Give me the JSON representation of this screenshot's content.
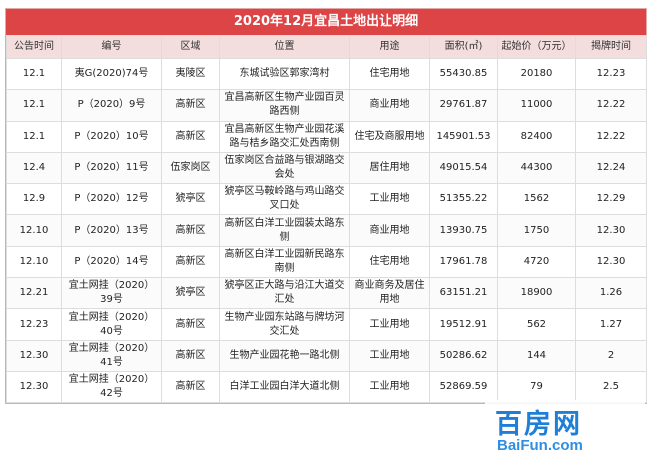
{
  "title": "2020年12月宜昌土地出让明细",
  "headers": [
    "公告时间",
    "编号",
    "区域",
    "位置",
    "用途",
    "面积(㎡)",
    "起始价（万元）",
    "揭牌时间"
  ],
  "rows": [
    [
      "12.1",
      "夷G(2020)74号",
      "夷陵区",
      "东城试验区郭家湾村",
      "住宅用地",
      "55430.85",
      "20180",
      "12.23"
    ],
    [
      "12.1",
      "P（2020）9号",
      "高新区",
      "宜昌高新区生物产业园百灵路西侧",
      "商业用地",
      "29761.87",
      "11000",
      "12.22"
    ],
    [
      "12.1",
      "P（2020）10号",
      "高新区",
      "宜昌高新区生物产业园花溪路与桔乡路交汇处西南侧",
      "住宅及商服用地",
      "145901.53",
      "82400",
      "12.22"
    ],
    [
      "12.4",
      "P（2020）11号",
      "伍家岗区",
      "伍家岗区合益路与银湖路交会处",
      "居住用地",
      "49015.54",
      "44300",
      "12.24"
    ],
    [
      "12.9",
      "P（2020）12号",
      "猇亭区",
      "猇亭区马鞍岭路与鸡山路交叉口处",
      "工业用地",
      "51355.22",
      "1562",
      "12.29"
    ],
    [
      "12.10",
      "P（2020）13号",
      "高新区",
      "高新区白洋工业园装太路东侧",
      "商业用地",
      "13930.75",
      "1750",
      "12.30"
    ],
    [
      "12.10",
      "P（2020）14号",
      "高新区",
      "高新区白洋工业园新民路东南侧",
      "住宅用地",
      "17961.78",
      "4720",
      "12.30"
    ],
    [
      "12.21",
      "宜土网挂（2020）39号",
      "猇亭区",
      "猇亭区正大路与沿江大道交汇处",
      "商业商务及居住用地",
      "63151.21",
      "18900",
      "1.26"
    ],
    [
      "12.23",
      "宜土网挂（2020）40号",
      "高新区",
      "生物产业园东站路与牌坊河交汇处",
      "工业用地",
      "19512.91",
      "562",
      "1.27"
    ],
    [
      "12.30",
      "宜土网挂（2020）41号",
      "高新区",
      "生物产业园花艳一路北侧",
      "工业用地",
      "50286.62",
      "144",
      "2"
    ],
    [
      "12.30",
      "宜土网挂（2020）42号",
      "高新区",
      "白洋工业园白洋大道北侧",
      "工业用地",
      "52869.59",
      "79",
      "2.5"
    ]
  ],
  "watermark": {
    "cn": "百房网",
    "en": "BaiFun.com"
  }
}
